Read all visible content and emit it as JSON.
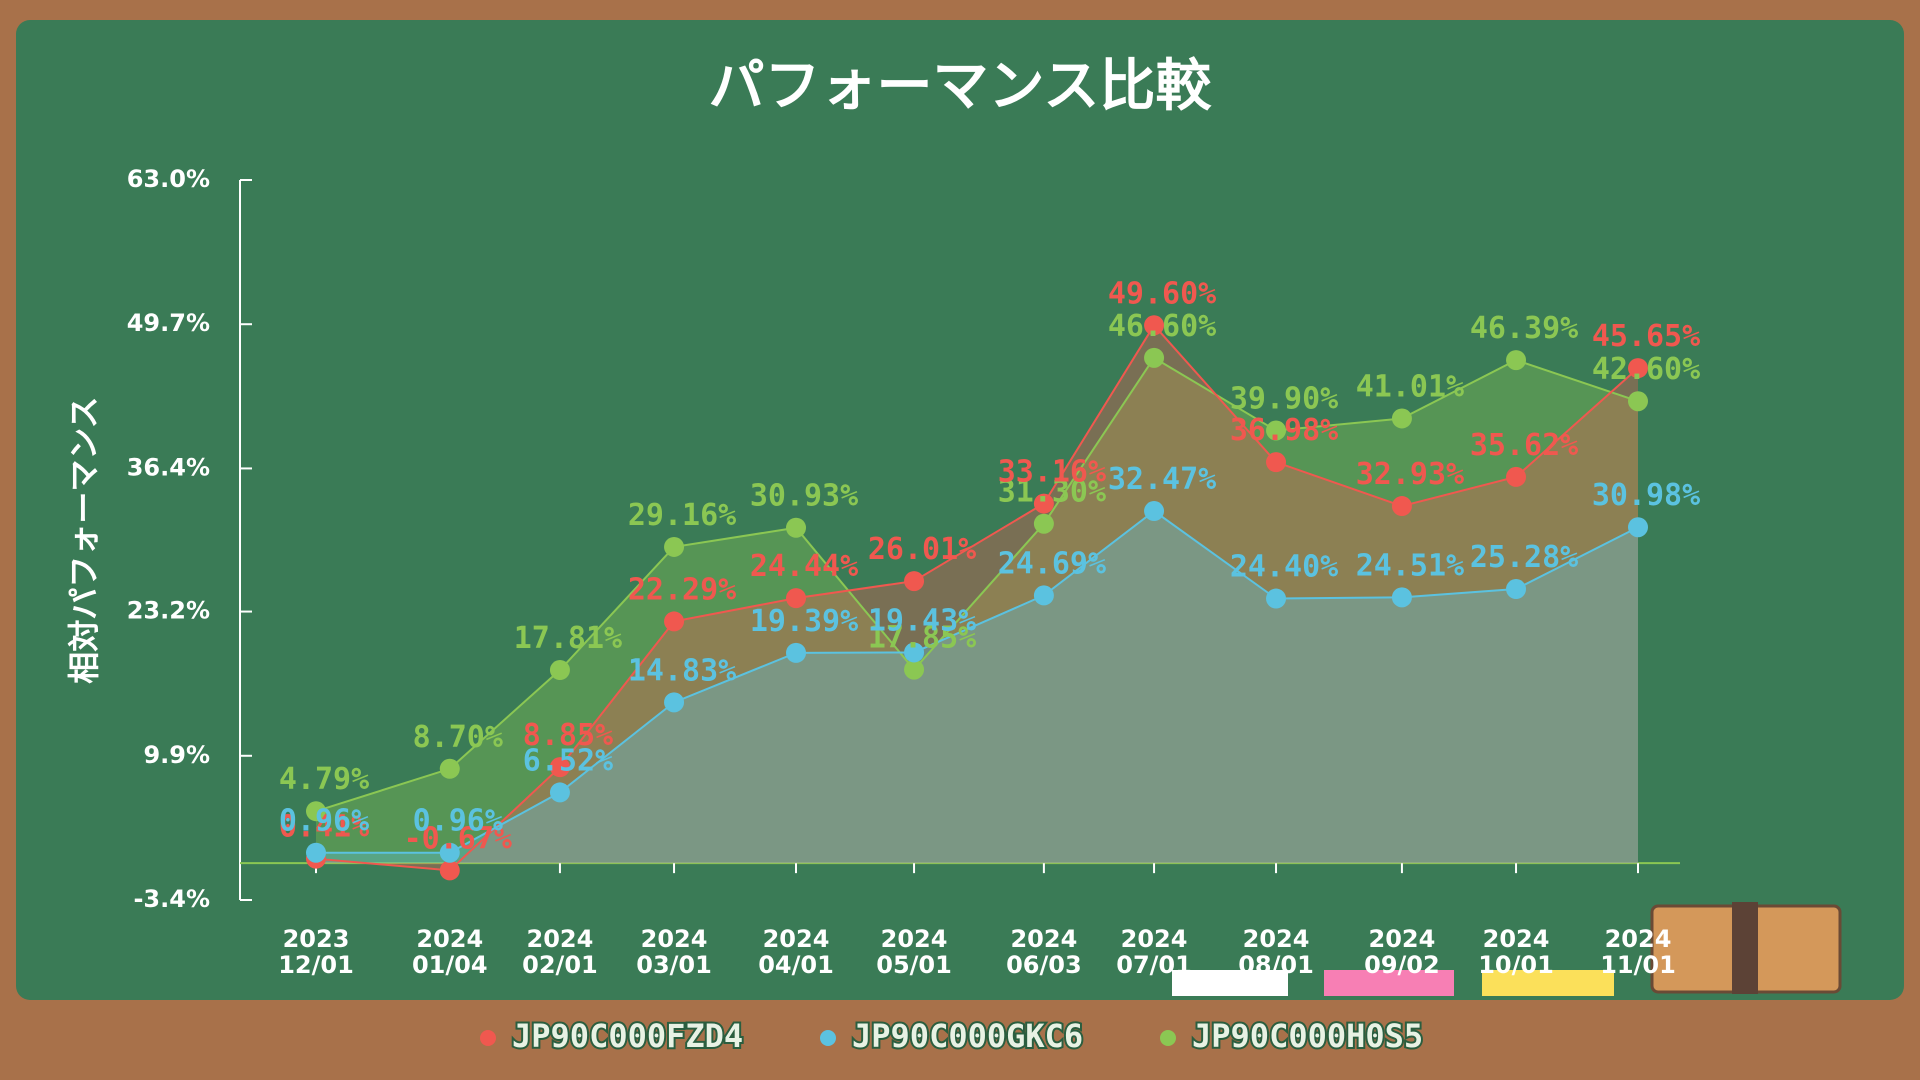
{
  "chart_data": {
    "type": "line",
    "title": "パフォーマンス比較",
    "y_label": "相対パフォーマンス",
    "categories": [
      "2023 12/01",
      "2024 01/04",
      "2024 02/01",
      "2024 03/01",
      "2024 04/01",
      "2024 05/01",
      "2024 06/03",
      "2024 07/01",
      "2024 08/01",
      "2024 09/02",
      "2024 10/01",
      "2024 11/01"
    ],
    "ylim": [
      -3.4,
      63.0
    ],
    "yticks": [
      {
        "value": -3.4,
        "label": "-3.4%"
      },
      {
        "value": 9.9,
        "label": "9.9%"
      },
      {
        "value": 23.2,
        "label": "23.2%"
      },
      {
        "value": 36.4,
        "label": "36.4%"
      },
      {
        "value": 49.7,
        "label": "49.7%"
      },
      {
        "value": 63.0,
        "label": "63.0%"
      }
    ],
    "series": [
      {
        "name": "JP90C000FZD4",
        "color": "#f0584f",
        "values": [
          0.41,
          -0.67,
          8.85,
          22.29,
          24.44,
          26.01,
          33.16,
          49.6,
          36.98,
          32.93,
          35.62,
          45.65
        ],
        "value_labels": [
          "0.41%",
          "-0.67%",
          "8.85%",
          "22.29%",
          "24.44%",
          "26.01%",
          "33.16%",
          "49.60%",
          "36.98%",
          "32.93%",
          "35.62%",
          "45.65%"
        ]
      },
      {
        "name": "JP90C000GKC6",
        "color": "#5bc2e0",
        "values": [
          0.96,
          0.96,
          6.52,
          14.83,
          19.39,
          19.43,
          24.69,
          32.47,
          24.4,
          24.51,
          25.28,
          30.98
        ],
        "value_labels": [
          "0.96%",
          "0.96%",
          "6.52%",
          "14.83%",
          "19.39%",
          "19.43%",
          "24.69%",
          "32.47%",
          "24.40%",
          "24.51%",
          "25.28%",
          "30.98%"
        ]
      },
      {
        "name": "JP90C000H0S5",
        "color": "#8bc753",
        "values": [
          4.79,
          8.7,
          17.81,
          29.16,
          30.93,
          17.85,
          31.3,
          46.6,
          39.9,
          41.01,
          46.39,
          42.6
        ],
        "value_labels": [
          "4.79%",
          "8.70%",
          "17.81%",
          "29.16%",
          "30.93%",
          "17.85%",
          "31.30%",
          "46.60%",
          "39.90%",
          "41.01%",
          "46.39%",
          "42.60%"
        ]
      }
    ]
  }
}
